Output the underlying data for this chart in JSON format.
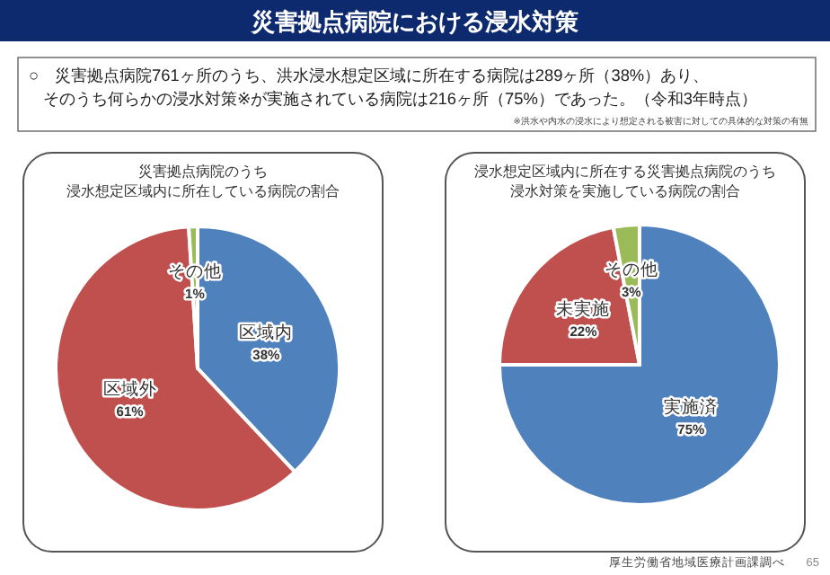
{
  "chart_data": [
    {
      "type": "pie",
      "title": "災害拠点病院のうち",
      "subtitle": "浸水想定区域内に所在している病院の割合",
      "categories": [
        "区域内",
        "区域外",
        "その他"
      ],
      "values": [
        38,
        61,
        1
      ],
      "value_labels": [
        "38%",
        "61%",
        "1%"
      ],
      "colors": [
        "#4f81bd",
        "#c0504d",
        "#9bbb59"
      ],
      "annotations": [
        "災害拠点病院における浸水対策",
        "○　災害拠点病院761ヶ所のうち、洪水浸水想定区域に所在する病院は289ヶ所（38%）あり、",
        "そのうち何らかの浸水対策※が実施されている病院は216ヶ所（75%）であった。（令和3年時点）",
        "※洪水や内水の浸水により想定される被害に対しての具体的な対策の有無"
      ]
    },
    {
      "type": "pie",
      "title": "浸水想定区域内に所在する災害拠点病院のうち",
      "subtitle": "浸水対策を実施している病院の割合",
      "categories": [
        "実施済",
        "未実施",
        "その他"
      ],
      "values": [
        75,
        22,
        3
      ],
      "value_labels": [
        "75%",
        "22%",
        "3%"
      ],
      "colors": [
        "#4f81bd",
        "#c0504d",
        "#9bbb59"
      ],
      "annotations": [
        "厚生労働省地域医療計画課調べ",
        "65"
      ]
    }
  ]
}
